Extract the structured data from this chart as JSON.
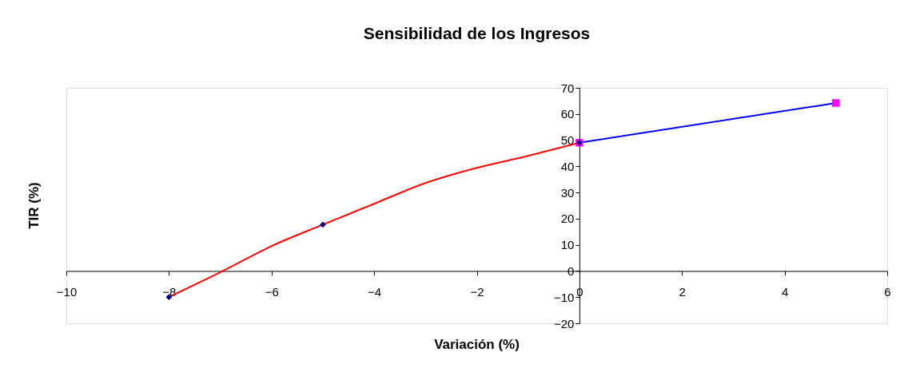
{
  "chart_data": {
    "type": "line",
    "title": "Sensibilidad de los Ingresos",
    "xlabel": "Variación (%)",
    "ylabel": "TIR (%)",
    "xlim": [
      -10,
      6
    ],
    "xticks": [
      -10,
      -8,
      -6,
      -4,
      -2,
      0,
      2,
      4,
      6
    ],
    "ylim": [
      -20,
      70
    ],
    "yticks": [
      -20,
      -10,
      0,
      10,
      20,
      30,
      40,
      50,
      60,
      70
    ],
    "grid": false,
    "series": [
      {
        "color": "#ff0000",
        "marker": "none",
        "x": [
          -8,
          -7,
          -6,
          -5,
          -4,
          -3,
          -2,
          -1,
          0
        ],
        "values": [
          -10,
          -0.5,
          9.5,
          17.7,
          25.7,
          33.6,
          39.4,
          44,
          49
        ]
      },
      {
        "color": "#0000ff",
        "marker": "none",
        "x": [
          0,
          5
        ],
        "values": [
          49,
          64.2
        ]
      },
      {
        "type": "scatter",
        "color": "#ff00ff",
        "marker": "square",
        "x": [
          0,
          5
        ],
        "values": [
          49,
          64.2
        ]
      },
      {
        "type": "scatter",
        "color": "#000080",
        "marker": "diamond",
        "x": [
          -8,
          -5,
          0
        ],
        "values": [
          -10,
          17.7,
          49
        ]
      }
    ]
  }
}
